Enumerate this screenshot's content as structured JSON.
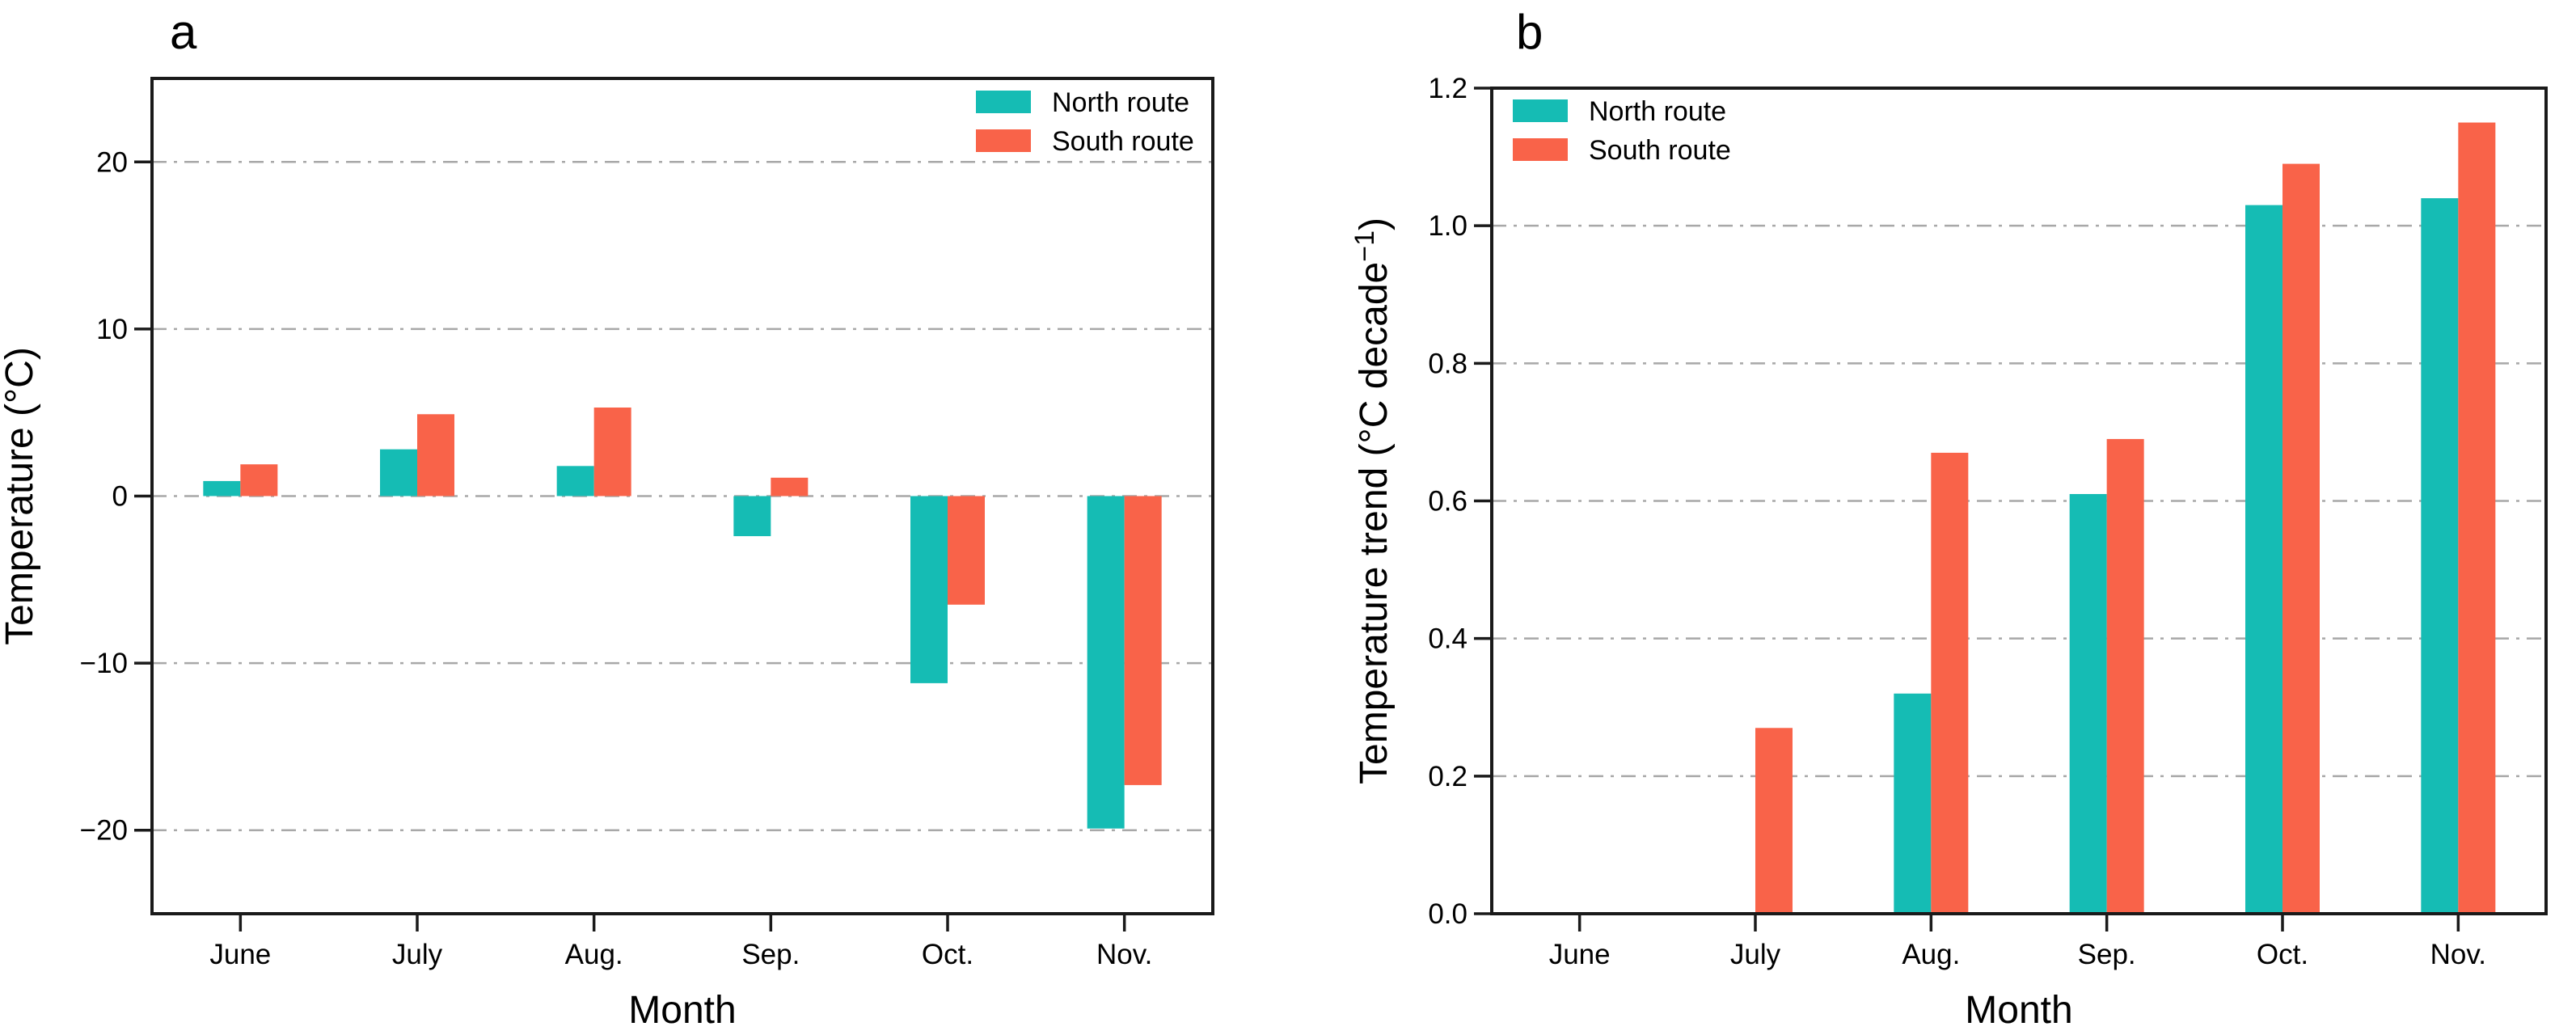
{
  "figure": {
    "panels": [
      {
        "label": "a"
      },
      {
        "label": "b"
      }
    ],
    "colors": {
      "north": "#15BCB4",
      "south": "#F96349",
      "grid": "#A8A8A8",
      "axis": "#1A1A1A",
      "text": "#000000",
      "background": "#FFFFFF"
    }
  },
  "chart_data": [
    {
      "type": "bar",
      "panel": "a",
      "categories": [
        "June",
        "July",
        "Aug.",
        "Sep.",
        "Oct.",
        "Nov."
      ],
      "series": [
        {
          "name": "North route",
          "color": "#15BCB4",
          "values": [
            0.9,
            2.8,
            1.8,
            -2.4,
            -11.2,
            -19.9
          ]
        },
        {
          "name": "South route",
          "color": "#F96349",
          "values": [
            1.9,
            4.9,
            5.3,
            1.1,
            -6.5,
            -17.3
          ]
        }
      ],
      "xlabel": "Month",
      "ylabel": "Temperature (°C)",
      "ylim": [
        -25,
        25
      ],
      "yticks": [
        20,
        10,
        0,
        -10,
        -20
      ],
      "ytick_labels": [
        "20",
        "10",
        "0",
        "−10",
        "−20"
      ],
      "grid": "horizontal dash-dot",
      "legend_position": "top-right"
    },
    {
      "type": "bar",
      "panel": "b",
      "categories": [
        "June",
        "July",
        "Aug.",
        "Sep.",
        "Oct.",
        "Nov."
      ],
      "series": [
        {
          "name": "North route",
          "color": "#15BCB4",
          "values": [
            0,
            0,
            0.32,
            0.61,
            1.03,
            1.04
          ]
        },
        {
          "name": "South route",
          "color": "#F96349",
          "values": [
            0,
            0.27,
            0.67,
            0.69,
            1.09,
            1.15
          ]
        }
      ],
      "xlabel": "Month",
      "ylabel": "Temperature trend (°C decade⁻¹)",
      "ylim": [
        0,
        1.2
      ],
      "yticks": [
        1.2,
        1.0,
        0.8,
        0.6,
        0.4,
        0.2,
        0.0
      ],
      "ytick_labels": [
        "1.2",
        "1.0",
        "0.8",
        "0.6",
        "0.4",
        "0.2",
        "0.0"
      ],
      "grid": "horizontal dash-dot",
      "legend_position": "top-left"
    }
  ]
}
